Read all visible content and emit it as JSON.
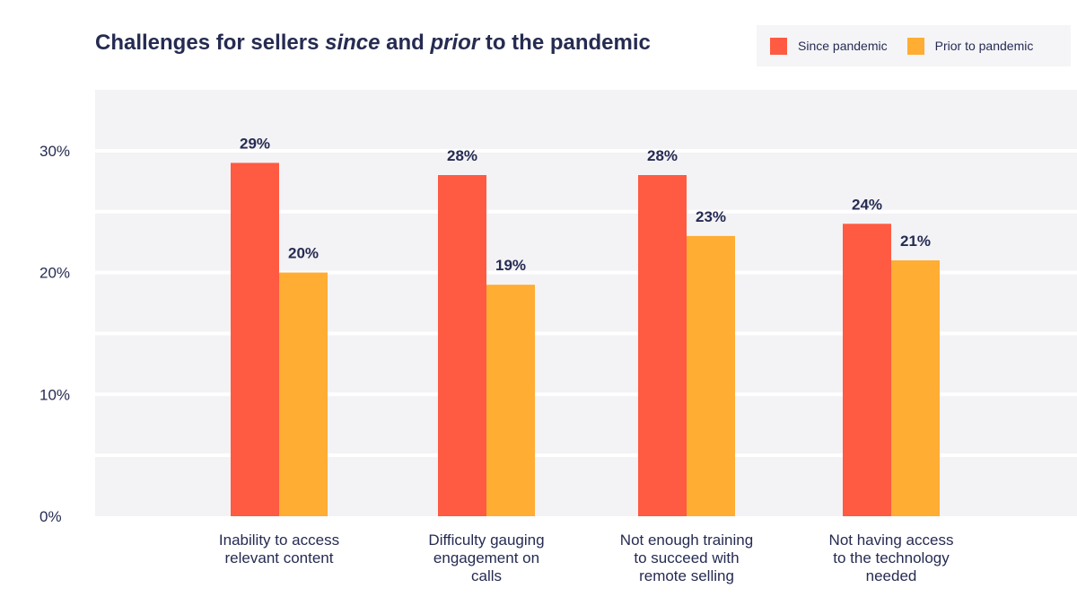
{
  "chart_data": {
    "type": "bar",
    "title": {
      "p1": "Challenges for sellers ",
      "since": "since",
      "p2": " and ",
      "prior": "prior",
      "p3": " to the pandemic"
    },
    "categories": [
      [
        "Inability to access",
        "relevant content"
      ],
      [
        "Difficulty gauging",
        "engagement on",
        "calls"
      ],
      [
        "Not enough training",
        "to succeed with",
        "remote selling"
      ],
      [
        "Not having access",
        "to the technology",
        "needed"
      ]
    ],
    "series": [
      {
        "name": "Since pandemic",
        "color": "#ff5a42",
        "values": [
          29,
          28,
          28,
          24
        ],
        "labels": [
          "29%",
          "28%",
          "28%",
          "24%"
        ]
      },
      {
        "name": "Prior to pandemic",
        "color": "#ffad33",
        "values": [
          20,
          19,
          23,
          21
        ],
        "labels": [
          "20%",
          "19%",
          "23%",
          "21%"
        ]
      }
    ],
    "yticks": [
      {
        "value": 0,
        "label": "0%"
      },
      {
        "value": 10,
        "label": "10%"
      },
      {
        "value": 20,
        "label": "20%"
      },
      {
        "value": 30,
        "label": "30%"
      }
    ],
    "ylim": [
      0,
      35
    ],
    "xlabel": "",
    "ylabel": "",
    "legend_position": "top-right"
  },
  "colors": {
    "plot_bg": "#f3f3f6",
    "gridline": "#ffffff",
    "text": "#262b52"
  }
}
